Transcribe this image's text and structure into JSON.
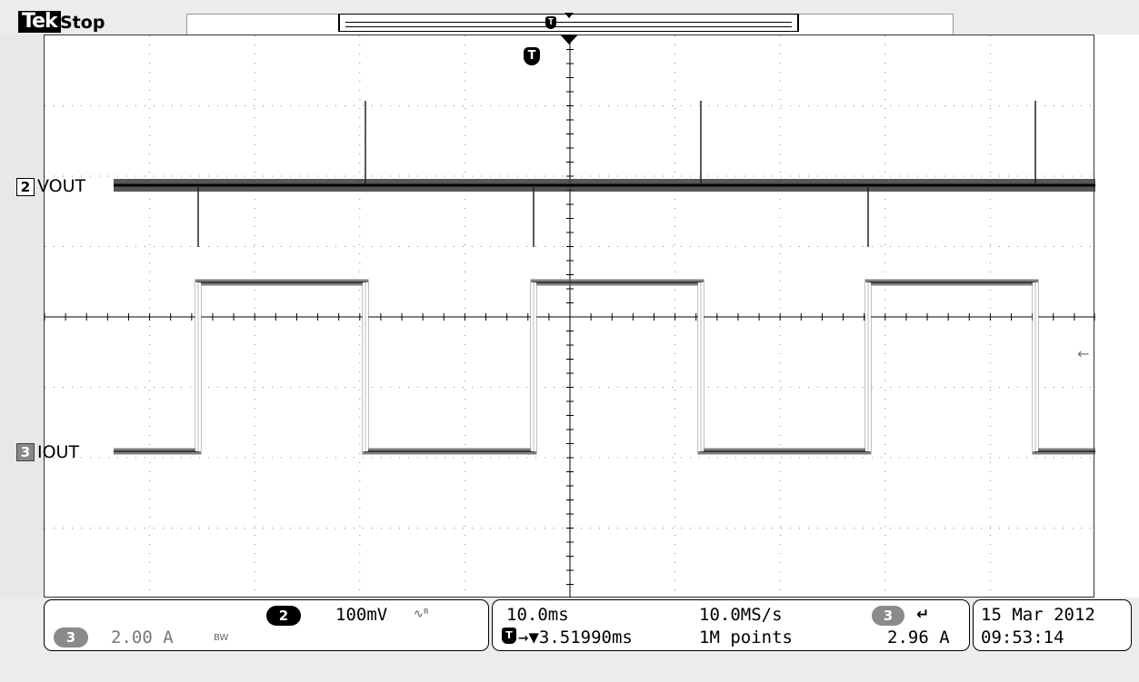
{
  "header": {
    "brand": "Tek",
    "status": "Stop"
  },
  "trigger_marker": "T",
  "channels": {
    "ch2": {
      "number": "2",
      "label": "VOUT"
    },
    "ch3": {
      "number": "3",
      "label": "IOUT"
    }
  },
  "readouts": {
    "ch2_num": "2",
    "ch2_scale": "100mV",
    "ch2_bw_icon": "bandwidth-limit-icon",
    "ch3_num": "3",
    "ch3_scale": "2.00 A",
    "ch3_bw": "BW",
    "time_div": "10.0ms",
    "sample_rate": "10.0MS/s",
    "trigger_source": "3",
    "trigger_slope_icon": "rising-edge-icon",
    "trigger_position": "→▼3.51990ms",
    "record_length": "1M points",
    "trigger_level": "2.96 A",
    "date": "15 Mar  2012",
    "time": "09:53:14"
  },
  "colors": {
    "trace": "#3a3a3a",
    "grid": "#888888",
    "frame": "#000000"
  }
}
